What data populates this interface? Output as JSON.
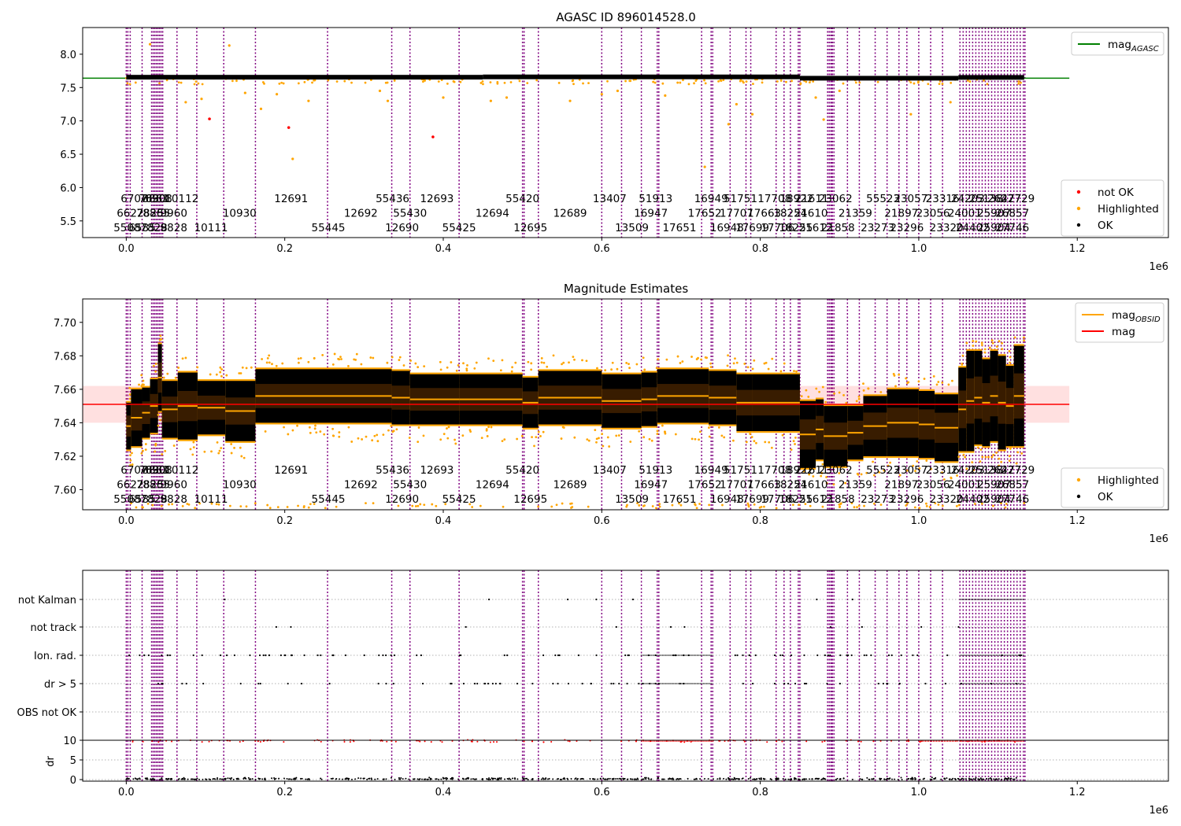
{
  "chart_data": [
    {
      "type": "scatter",
      "title": "AGASC ID 896014528.0",
      "xlim": [
        -55000,
        1315000
      ],
      "ylim": [
        5.25,
        8.4
      ],
      "yticks": [
        5.5,
        6.0,
        6.5,
        7.0,
        7.5,
        8.0
      ],
      "ytick_labels": [
        "5.5",
        "6.0",
        "6.5",
        "7.0",
        "7.5",
        "8.0"
      ],
      "xticks": [
        0,
        200000,
        400000,
        600000,
        800000,
        1000000,
        1200000
      ],
      "xtick_labels": [
        "0.0",
        "0.2",
        "0.4",
        "0.6",
        "0.8",
        "1.0",
        "1.2"
      ],
      "x_offset_label": "1e6",
      "grid": false,
      "reference_line": {
        "name": "mag_AGASC",
        "value": 7.64,
        "x_range": [
          -55000,
          1190000
        ],
        "color": "#008000"
      },
      "ok_segments": [
        {
          "x": [
            0,
            450000
          ],
          "y": 7.655
        },
        {
          "x": [
            450000,
            850000
          ],
          "y": 7.66
        },
        {
          "x": [
            850000,
            1050000
          ],
          "y": 7.64
        },
        {
          "x": [
            1050000,
            1133000
          ],
          "y": 7.652
        }
      ],
      "highlighted_points": [
        [
          30000,
          8.15
        ],
        [
          130000,
          8.13
        ],
        [
          75000,
          7.28
        ],
        [
          95000,
          7.33
        ],
        [
          150000,
          7.42
        ],
        [
          170000,
          7.18
        ],
        [
          210000,
          6.43
        ],
        [
          230000,
          7.3
        ],
        [
          190000,
          7.4
        ],
        [
          320000,
          7.45
        ],
        [
          330000,
          7.3
        ],
        [
          400000,
          7.35
        ],
        [
          460000,
          7.3
        ],
        [
          480000,
          7.35
        ],
        [
          560000,
          7.3
        ],
        [
          600000,
          7.4
        ],
        [
          620000,
          7.45
        ],
        [
          680000,
          7.38
        ],
        [
          730000,
          6.31
        ],
        [
          760000,
          6.95
        ],
        [
          770000,
          7.25
        ],
        [
          790000,
          7.1
        ],
        [
          870000,
          7.35
        ],
        [
          880000,
          7.02
        ],
        [
          900000,
          7.45
        ],
        [
          990000,
          7.1
        ],
        [
          1040000,
          7.28
        ]
      ],
      "not_ok_points": [
        [
          105000,
          7.03
        ],
        [
          205000,
          6.9
        ],
        [
          387000,
          6.76
        ]
      ],
      "legend": [
        {
          "label": "mag",
          "sub": "AGASC",
          "color": "#008000",
          "kind": "line"
        },
        {
          "label": "not OK",
          "color": "#ff0000",
          "kind": "dot"
        },
        {
          "label": "Highlighted",
          "color": "#ffa500",
          "kind": "dot"
        },
        {
          "label": "OK",
          "color": "#000000",
          "kind": "dot"
        }
      ]
    },
    {
      "type": "scatter",
      "title": "Magnitude Estimates",
      "xlim": [
        -55000,
        1315000
      ],
      "ylim": [
        7.588,
        7.714
      ],
      "yticks": [
        7.6,
        7.62,
        7.64,
        7.66,
        7.68,
        7.7
      ],
      "ytick_labels": [
        "7.60",
        "7.62",
        "7.64",
        "7.66",
        "7.68",
        "7.70"
      ],
      "xticks": [
        0,
        200000,
        400000,
        600000,
        800000,
        1000000,
        1200000
      ],
      "xtick_labels": [
        "0.0",
        "0.2",
        "0.4",
        "0.6",
        "0.8",
        "1.0",
        "1.2"
      ],
      "x_offset_label": "1e6",
      "grid": false,
      "mag": {
        "name": "mag",
        "value": 7.651,
        "band": [
          7.64,
          7.662
        ],
        "x_range": [
          -55000,
          1190000
        ],
        "color": "#ff0000"
      },
      "obsid_segments": [
        {
          "x": [
            0,
            6000
          ],
          "mean": 7.638,
          "half": 0.014
        },
        {
          "x": [
            6000,
            20000
          ],
          "mean": 7.643,
          "half": 0.017
        },
        {
          "x": [
            20000,
            30000
          ],
          "mean": 7.646,
          "half": 0.015
        },
        {
          "x": [
            30000,
            40000
          ],
          "mean": 7.65,
          "half": 0.016
        },
        {
          "x": [
            40000,
            45000
          ],
          "mean": 7.667,
          "half": 0.02
        },
        {
          "x": [
            45000,
            65000
          ],
          "mean": 7.648,
          "half": 0.017
        },
        {
          "x": [
            65000,
            90000
          ],
          "mean": 7.65,
          "half": 0.02
        },
        {
          "x": [
            90000,
            125000
          ],
          "mean": 7.649,
          "half": 0.016
        },
        {
          "x": [
            125000,
            163000
          ],
          "mean": 7.647,
          "half": 0.018
        },
        {
          "x": [
            163000,
            335000
          ],
          "mean": 7.656,
          "half": 0.016
        },
        {
          "x": [
            335000,
            358000
          ],
          "mean": 7.655,
          "half": 0.016
        },
        {
          "x": [
            358000,
            420000
          ],
          "mean": 7.654,
          "half": 0.015
        },
        {
          "x": [
            420000,
            500000
          ],
          "mean": 7.654,
          "half": 0.015
        },
        {
          "x": [
            500000,
            520000
          ],
          "mean": 7.652,
          "half": 0.015
        },
        {
          "x": [
            520000,
            600000
          ],
          "mean": 7.655,
          "half": 0.016
        },
        {
          "x": [
            600000,
            650000
          ],
          "mean": 7.653,
          "half": 0.016
        },
        {
          "x": [
            650000,
            670000
          ],
          "mean": 7.654,
          "half": 0.016
        },
        {
          "x": [
            670000,
            735000
          ],
          "mean": 7.656,
          "half": 0.016
        },
        {
          "x": [
            735000,
            770000
          ],
          "mean": 7.655,
          "half": 0.016
        },
        {
          "x": [
            770000,
            790000
          ],
          "mean": 7.652,
          "half": 0.017
        },
        {
          "x": [
            790000,
            850000
          ],
          "mean": 7.652,
          "half": 0.017
        },
        {
          "x": [
            850000,
            870000
          ],
          "mean": 7.633,
          "half": 0.02
        },
        {
          "x": [
            870000,
            880000
          ],
          "mean": 7.636,
          "half": 0.018
        },
        {
          "x": [
            880000,
            910000
          ],
          "mean": 7.632,
          "half": 0.018
        },
        {
          "x": [
            910000,
            930000
          ],
          "mean": 7.634,
          "half": 0.016
        },
        {
          "x": [
            930000,
            960000
          ],
          "mean": 7.638,
          "half": 0.018
        },
        {
          "x": [
            960000,
            1000000
          ],
          "mean": 7.64,
          "half": 0.02
        },
        {
          "x": [
            1000000,
            1020000
          ],
          "mean": 7.639,
          "half": 0.02
        },
        {
          "x": [
            1020000,
            1050000
          ],
          "mean": 7.637,
          "half": 0.02
        },
        {
          "x": [
            1050000,
            1060000
          ],
          "mean": 7.648,
          "half": 0.025
        },
        {
          "x": [
            1060000,
            1070000
          ],
          "mean": 7.653,
          "half": 0.03
        },
        {
          "x": [
            1070000,
            1080000
          ],
          "mean": 7.655,
          "half": 0.028
        },
        {
          "x": [
            1080000,
            1090000
          ],
          "mean": 7.652,
          "half": 0.026
        },
        {
          "x": [
            1090000,
            1100000
          ],
          "mean": 7.656,
          "half": 0.027
        },
        {
          "x": [
            1100000,
            1110000
          ],
          "mean": 7.652,
          "half": 0.028
        },
        {
          "x": [
            1110000,
            1120000
          ],
          "mean": 7.65,
          "half": 0.024
        },
        {
          "x": [
            1120000,
            1133000
          ],
          "mean": 7.656,
          "half": 0.03
        }
      ],
      "legend": [
        {
          "label": "mag",
          "sub": "OBSID",
          "color": "#ffa500",
          "kind": "line"
        },
        {
          "label": "mag",
          "color": "#ff0000",
          "kind": "line"
        },
        {
          "label": "Highlighted",
          "color": "#ffa500",
          "kind": "dot"
        },
        {
          "label": "OK",
          "color": "#000000",
          "kind": "dot"
        }
      ]
    },
    {
      "type": "scatter",
      "xlim": [
        -55000,
        1315000
      ],
      "xticks": [
        0,
        200000,
        400000,
        600000,
        800000,
        1000000,
        1200000
      ],
      "xtick_labels": [
        "0.0",
        "0.2",
        "0.4",
        "0.6",
        "0.8",
        "1.0",
        "1.2"
      ],
      "x_offset_label": "1e6",
      "ylabel": "dr",
      "dr_yticks": [
        "0",
        "5",
        "10"
      ],
      "flag_rows": [
        "not Kalman",
        "not track",
        "Ion. rad.",
        "dr > 5",
        "OBS not OK"
      ],
      "grid": "dotted horizontal"
    }
  ],
  "obsid_lines": [
    0,
    2000,
    5000,
    20000,
    32000,
    34000,
    36000,
    38000,
    40000,
    42000,
    44000,
    46000,
    64000,
    89000,
    123000,
    163000,
    254000,
    335000,
    358000,
    420000,
    500000,
    502000,
    520000,
    600000,
    625000,
    650000,
    670000,
    672000,
    726000,
    738000,
    740000,
    762000,
    782000,
    788000,
    820000,
    830000,
    838000,
    848000,
    850000,
    885000,
    887000,
    889000,
    890000,
    891000,
    893000,
    910000,
    925000,
    945000,
    960000,
    975000,
    985000,
    1000000,
    1015000,
    1030000,
    1052000,
    1056000,
    1060000,
    1064000,
    1068000,
    1072000,
    1076000,
    1080000,
    1084000,
    1088000,
    1092000,
    1096000,
    1100000,
    1104000,
    1108000,
    1112000,
    1116000,
    1120000,
    1124000,
    1128000,
    1132000,
    1134000
  ],
  "obsid_labels": [
    {
      "text": "6707",
      "x": 10000,
      "row": 0
    },
    {
      "text": "7830",
      "x": 33000,
      "row": 0
    },
    {
      "text": "8861",
      "x": 37000,
      "row": 0
    },
    {
      "text": "6908",
      "x": 41000,
      "row": 0
    },
    {
      "text": "10112",
      "x": 70000,
      "row": 0
    },
    {
      "text": "12691",
      "x": 208000,
      "row": 0
    },
    {
      "text": "55436",
      "x": 336000,
      "row": 0
    },
    {
      "text": "12693",
      "x": 392000,
      "row": 0
    },
    {
      "text": "55420",
      "x": 500000,
      "row": 0
    },
    {
      "text": "13407",
      "x": 610000,
      "row": 0
    },
    {
      "text": "51913",
      "x": 668000,
      "row": 0
    },
    {
      "text": "16949",
      "x": 738000,
      "row": 0
    },
    {
      "text": "51751",
      "x": 775000,
      "row": 0
    },
    {
      "text": "17708",
      "x": 818000,
      "row": 0
    },
    {
      "text": "18922",
      "x": 846000,
      "row": 0
    },
    {
      "text": "21611",
      "x": 865000,
      "row": 0
    },
    {
      "text": "23062",
      "x": 895000,
      "row": 0
    },
    {
      "text": "55523",
      "x": 955000,
      "row": 0
    },
    {
      "text": "23057",
      "x": 990000,
      "row": 0
    },
    {
      "text": "23316",
      "x": 1030000,
      "row": 0
    },
    {
      "text": "24203",
      "x": 1062000,
      "row": 0
    },
    {
      "text": "25138",
      "x": 1085000,
      "row": 0
    },
    {
      "text": "26427",
      "x": 1108000,
      "row": 0
    },
    {
      "text": "27729",
      "x": 1125000,
      "row": 0
    },
    {
      "text": "6622",
      "x": 5000,
      "row": 1
    },
    {
      "text": "7825",
      "x": 30000,
      "row": 1
    },
    {
      "text": "8865",
      "x": 38000,
      "row": 1
    },
    {
      "text": "9960",
      "x": 60000,
      "row": 1
    },
    {
      "text": "10930",
      "x": 143000,
      "row": 1
    },
    {
      "text": "12692",
      "x": 296000,
      "row": 1
    },
    {
      "text": "55430",
      "x": 358000,
      "row": 1
    },
    {
      "text": "12694",
      "x": 462000,
      "row": 1
    },
    {
      "text": "12689",
      "x": 560000,
      "row": 1
    },
    {
      "text": "16947",
      "x": 662000,
      "row": 1
    },
    {
      "text": "17652",
      "x": 730000,
      "row": 1
    },
    {
      "text": "17707",
      "x": 770000,
      "row": 1
    },
    {
      "text": "17663",
      "x": 805000,
      "row": 1
    },
    {
      "text": "18254",
      "x": 838000,
      "row": 1
    },
    {
      "text": "21610",
      "x": 864000,
      "row": 1
    },
    {
      "text": "21359",
      "x": 920000,
      "row": 1
    },
    {
      "text": "21897",
      "x": 978000,
      "row": 1
    },
    {
      "text": "23056",
      "x": 1018000,
      "row": 1
    },
    {
      "text": "24001",
      "x": 1058000,
      "row": 1
    },
    {
      "text": "25907",
      "x": 1095000,
      "row": 1
    },
    {
      "text": "26857",
      "x": 1118000,
      "row": 1
    },
    {
      "text": "5508",
      "x": 1000,
      "row": 2
    },
    {
      "text": "6585",
      "x": 20000,
      "row": 2
    },
    {
      "text": "7828",
      "x": 35000,
      "row": 2
    },
    {
      "text": "9828",
      "x": 60000,
      "row": 2
    },
    {
      "text": "10111",
      "x": 107000,
      "row": 2
    },
    {
      "text": "55445",
      "x": 255000,
      "row": 2
    },
    {
      "text": "12690",
      "x": 348000,
      "row": 2
    },
    {
      "text": "55425",
      "x": 420000,
      "row": 2
    },
    {
      "text": "12695",
      "x": 510000,
      "row": 2
    },
    {
      "text": "13509",
      "x": 638000,
      "row": 2
    },
    {
      "text": "17651",
      "x": 698000,
      "row": 2
    },
    {
      "text": "16948",
      "x": 758000,
      "row": 2
    },
    {
      "text": "17699",
      "x": 790000,
      "row": 2
    },
    {
      "text": "17706",
      "x": 822000,
      "row": 2
    },
    {
      "text": "18255",
      "x": 845000,
      "row": 2
    },
    {
      "text": "21612",
      "x": 870000,
      "row": 2
    },
    {
      "text": "21858",
      "x": 898000,
      "row": 2
    },
    {
      "text": "23273",
      "x": 948000,
      "row": 2
    },
    {
      "text": "23296",
      "x": 985000,
      "row": 2
    },
    {
      "text": "23320",
      "x": 1035000,
      "row": 2
    },
    {
      "text": "24402",
      "x": 1068000,
      "row": 2
    },
    {
      "text": "25904",
      "x": 1095000,
      "row": 2
    },
    {
      "text": "27746",
      "x": 1118000,
      "row": 2
    }
  ]
}
